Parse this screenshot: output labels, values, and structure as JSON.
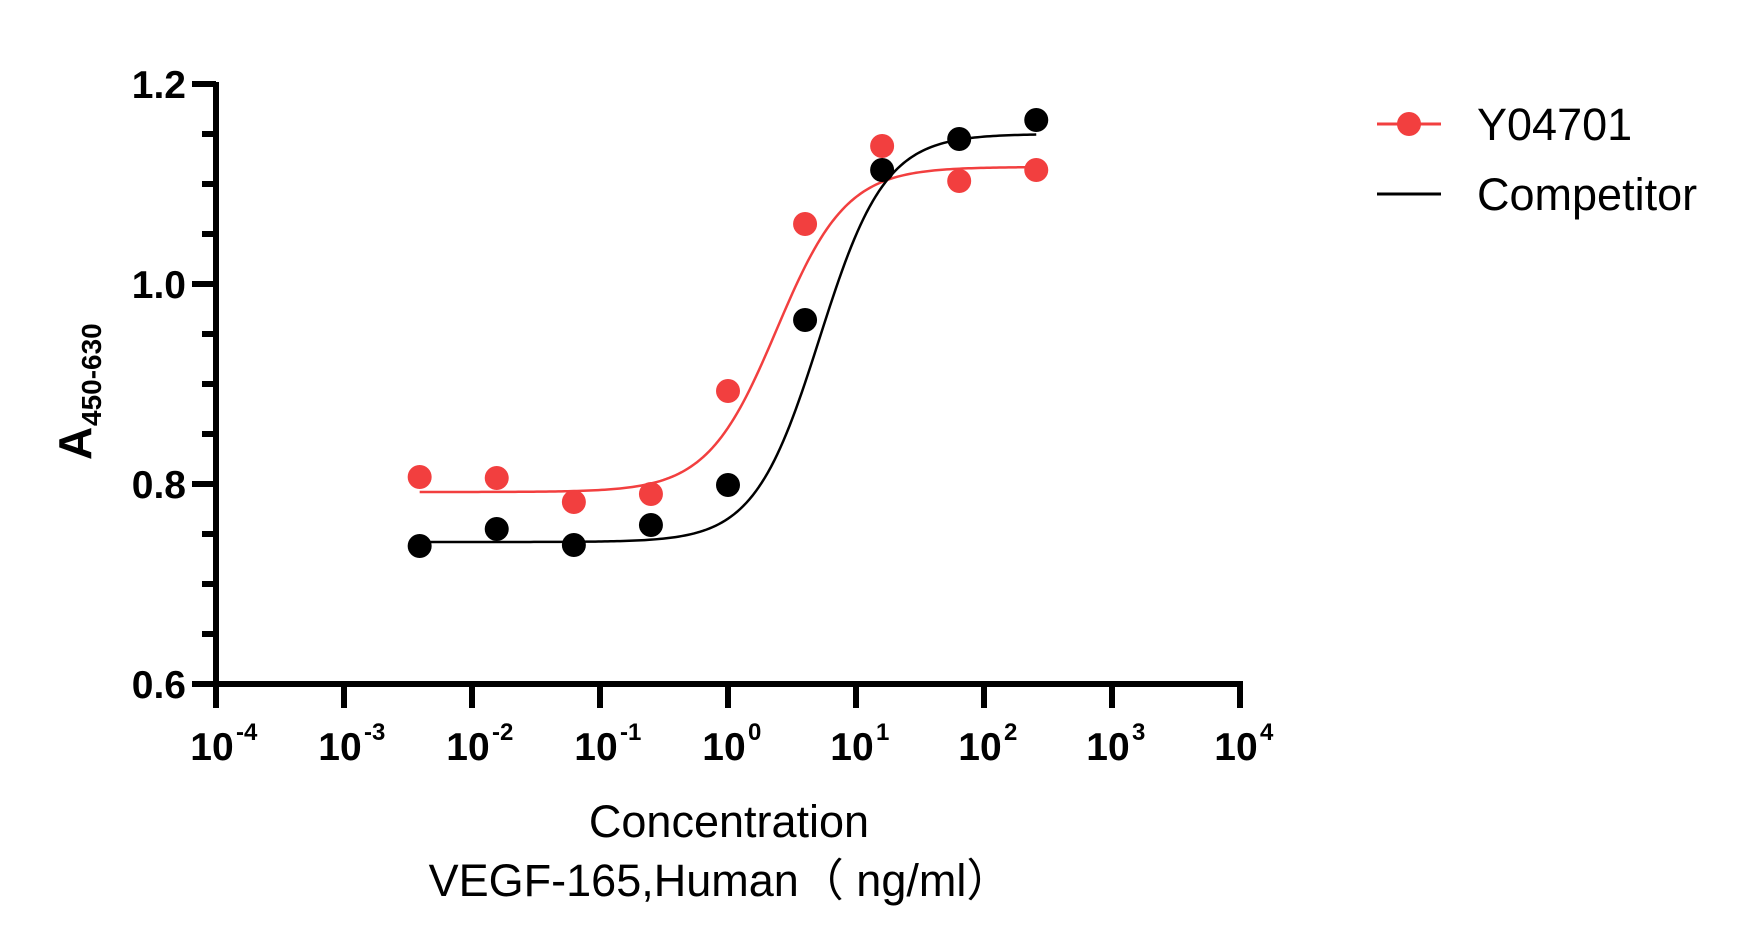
{
  "chart_data": {
    "type": "scatter",
    "title": "",
    "xlabel": "Concentration",
    "xlabel_line2": "VEGF-165,Human（ ng/ml）",
    "ylabel": "A",
    "ylabel_subscript": "450-630",
    "xscale": "log10",
    "xlim": [
      0.0001,
      10000
    ],
    "ylim": [
      0.6,
      1.2
    ],
    "x_ticks": [
      {
        "base": "10",
        "exp": "-4",
        "value": 0.0001
      },
      {
        "base": "10",
        "exp": "-3",
        "value": 0.001
      },
      {
        "base": "10",
        "exp": "-2",
        "value": 0.01
      },
      {
        "base": "10",
        "exp": "-1",
        "value": 0.1
      },
      {
        "base": "10",
        "exp": "0",
        "value": 1
      },
      {
        "base": "10",
        "exp": "1",
        "value": 10
      },
      {
        "base": "10",
        "exp": "2",
        "value": 100
      },
      {
        "base": "10",
        "exp": "3",
        "value": 1000
      },
      {
        "base": "10",
        "exp": "4",
        "value": 10000
      }
    ],
    "y_ticks": [
      "0.6",
      "0.8",
      "1.0",
      "1.2"
    ],
    "y_tick_values": [
      0.6,
      0.8,
      1.0,
      1.2
    ],
    "y_minor_step": 0.05,
    "grid": false,
    "legend_position": "top-right",
    "series": [
      {
        "name": "Y04701",
        "color": "#f23f3f",
        "marker": "circle",
        "x": [
          0.0039,
          0.0156,
          0.0625,
          0.25,
          1,
          4,
          16,
          64,
          256
        ],
        "y": [
          0.807,
          0.806,
          0.782,
          0.79,
          0.893,
          1.06,
          1.138,
          1.103,
          1.114
        ],
        "fit": {
          "model": "4PL",
          "bottom": 0.792,
          "top": 1.117,
          "ec50": 2.4,
          "hill": 1.6,
          "x_range": [
            0.0039,
            256
          ]
        }
      },
      {
        "name": "Competitor",
        "color": "#000000",
        "marker": "circle",
        "x": [
          0.0039,
          0.0156,
          0.0625,
          0.25,
          1,
          4,
          16,
          64,
          256
        ],
        "y": [
          0.738,
          0.755,
          0.739,
          0.759,
          0.799,
          0.964,
          1.114,
          1.145,
          1.164
        ],
        "fit": {
          "model": "4PL",
          "bottom": 0.742,
          "top": 1.15,
          "ec50": 5.2,
          "hill": 1.7,
          "x_range": [
            0.0039,
            256
          ]
        }
      }
    ]
  },
  "legend": {
    "items": [
      {
        "label": "Y04701",
        "color": "#f23f3f",
        "marker": "circle-with-line"
      },
      {
        "label": "Competitor",
        "color": "#000000",
        "marker": "line"
      }
    ]
  }
}
